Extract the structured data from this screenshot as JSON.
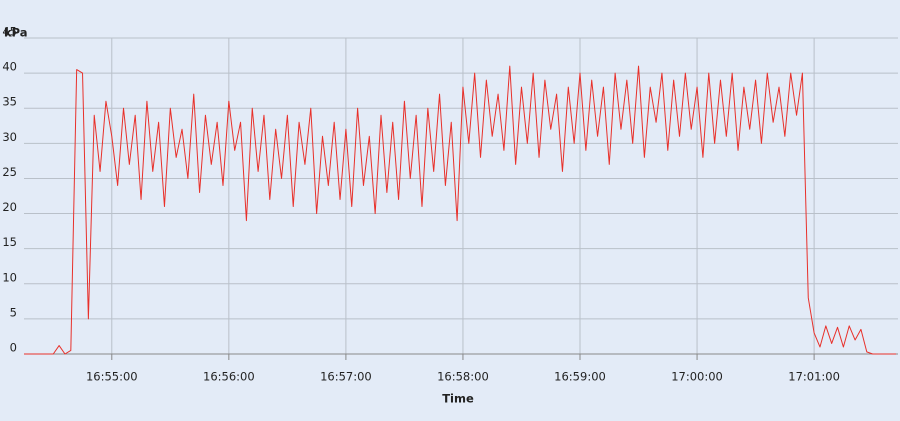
{
  "chart_data": {
    "type": "line",
    "y_label": "kPa",
    "x_label": "Time",
    "x": [
      "16:54:15",
      "16:54:18",
      "16:54:21",
      "16:54:24",
      "16:54:27",
      "16:54:30",
      "16:54:33",
      "16:54:36",
      "16:54:39",
      "16:54:42",
      "16:54:45",
      "16:54:48",
      "16:54:51",
      "16:54:54",
      "16:54:57",
      "16:55:00",
      "16:55:03",
      "16:55:06",
      "16:55:09",
      "16:55:12",
      "16:55:15",
      "16:55:18",
      "16:55:21",
      "16:55:24",
      "16:55:27",
      "16:55:30",
      "16:55:33",
      "16:55:36",
      "16:55:39",
      "16:55:42",
      "16:55:45",
      "16:55:48",
      "16:55:51",
      "16:55:54",
      "16:55:57",
      "16:56:00",
      "16:56:03",
      "16:56:06",
      "16:56:09",
      "16:56:12",
      "16:56:15",
      "16:56:18",
      "16:56:21",
      "16:56:24",
      "16:56:27",
      "16:56:30",
      "16:56:33",
      "16:56:36",
      "16:56:39",
      "16:56:42",
      "16:56:45",
      "16:56:48",
      "16:56:51",
      "16:56:54",
      "16:56:57",
      "16:57:00",
      "16:57:03",
      "16:57:06",
      "16:57:09",
      "16:57:12",
      "16:57:15",
      "16:57:18",
      "16:57:21",
      "16:57:24",
      "16:57:27",
      "16:57:30",
      "16:57:33",
      "16:57:36",
      "16:57:39",
      "16:57:42",
      "16:57:45",
      "16:57:48",
      "16:57:51",
      "16:57:54",
      "16:57:57",
      "16:58:00",
      "16:58:03",
      "16:58:06",
      "16:58:09",
      "16:58:12",
      "16:58:15",
      "16:58:18",
      "16:58:21",
      "16:58:24",
      "16:58:27",
      "16:58:30",
      "16:58:33",
      "16:58:36",
      "16:58:39",
      "16:58:42",
      "16:58:45",
      "16:58:48",
      "16:58:51",
      "16:58:54",
      "16:58:57",
      "16:59:00",
      "16:59:03",
      "16:59:06",
      "16:59:09",
      "16:59:12",
      "16:59:15",
      "16:59:18",
      "16:59:21",
      "16:59:24",
      "16:59:27",
      "16:59:30",
      "16:59:33",
      "16:59:36",
      "16:59:39",
      "16:59:42",
      "16:59:45",
      "16:59:48",
      "16:59:51",
      "16:59:54",
      "16:59:57",
      "17:00:00",
      "17:00:03",
      "17:00:06",
      "17:00:09",
      "17:00:12",
      "17:00:15",
      "17:00:18",
      "17:00:21",
      "17:00:24",
      "17:00:27",
      "17:00:30",
      "17:00:33",
      "17:00:36",
      "17:00:39",
      "17:00:42",
      "17:00:45",
      "17:00:48",
      "17:00:51",
      "17:00:54",
      "17:00:57",
      "17:01:00",
      "17:01:03",
      "17:01:06",
      "17:01:09",
      "17:01:12",
      "17:01:15",
      "17:01:18",
      "17:01:21",
      "17:01:24",
      "17:01:27",
      "17:01:30",
      "17:01:33",
      "17:01:36",
      "17:01:39",
      "17:01:42"
    ],
    "series": [
      {
        "color": "#e8302a",
        "values": [
          0,
          0,
          0,
          0,
          0,
          0,
          1.2,
          0,
          0.5,
          40.5,
          40,
          5,
          34,
          26,
          36,
          31,
          24,
          35,
          27,
          34,
          22,
          36,
          26,
          33,
          21,
          35,
          28,
          32,
          25,
          37,
          23,
          34,
          27,
          33,
          24,
          36,
          29,
          33,
          19,
          35,
          26,
          34,
          22,
          32,
          25,
          34,
          21,
          33,
          27,
          35,
          20,
          31,
          24,
          33,
          22,
          32,
          21,
          35,
          24,
          31,
          20,
          34,
          23,
          33,
          22,
          36,
          25,
          34,
          21,
          35,
          26,
          37,
          24,
          33,
          19,
          38,
          30,
          40,
          28,
          39,
          31,
          37,
          29,
          41,
          27,
          38,
          30,
          40,
          28,
          39,
          32,
          37,
          26,
          38,
          30,
          40,
          29,
          39,
          31,
          38,
          27,
          40,
          32,
          39,
          30,
          41,
          28,
          38,
          33,
          40,
          29,
          39,
          31,
          40,
          32,
          38,
          28,
          40,
          30,
          39,
          31,
          40,
          29,
          38,
          32,
          39,
          30,
          40,
          33,
          38,
          31,
          40,
          34,
          40,
          8,
          3,
          1,
          4,
          1.5,
          3.8,
          1,
          4,
          2,
          3.5,
          0.3,
          0,
          0,
          0,
          0,
          0
        ]
      }
    ],
    "xlim": [
      "16:54:15",
      "17:01:43"
    ],
    "xticks": [
      "16:55:00",
      "16:56:00",
      "16:57:00",
      "16:58:00",
      "16:59:00",
      "17:00:00",
      "17:01:00"
    ],
    "ylim": [
      0,
      45
    ],
    "yticks": [
      0,
      5,
      10,
      15,
      20,
      25,
      30,
      35,
      40,
      45
    ],
    "grid": true
  }
}
